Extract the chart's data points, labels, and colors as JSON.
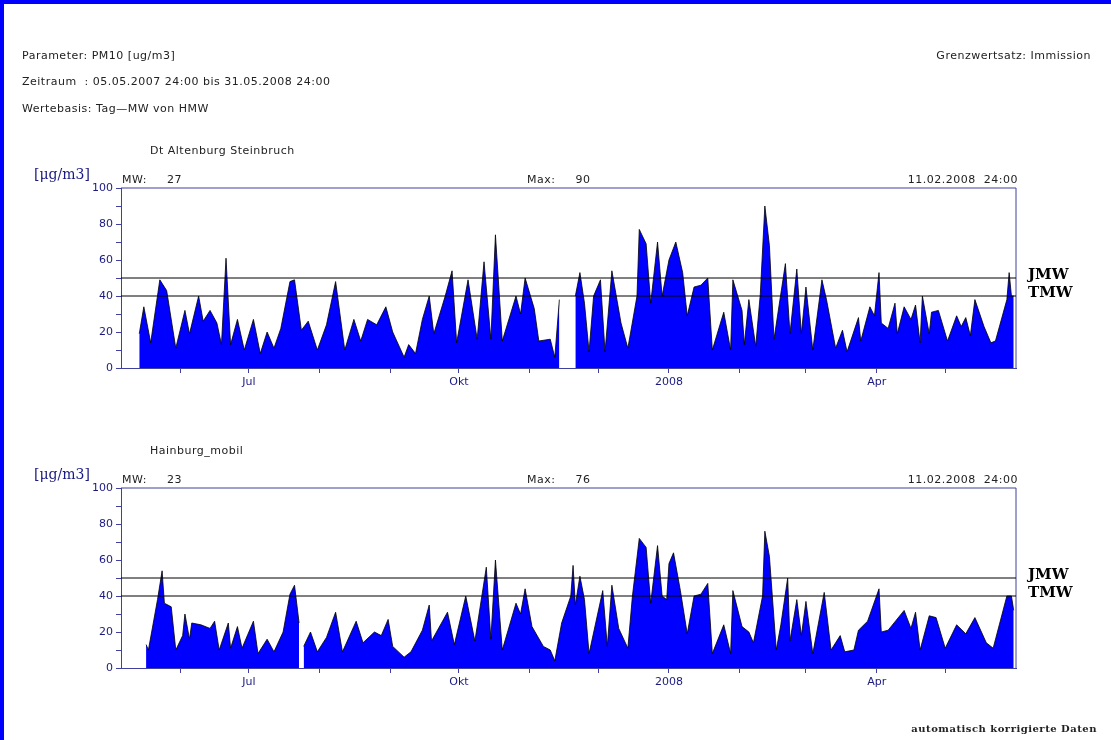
{
  "chart_data": [
    {
      "type": "area",
      "title": "Dt Altenburg Steinbruch",
      "ylabel": "[μg/m3]",
      "annotations": [
        "Parameter: PM10 [ug/m3]",
        "Grenzwertsatz: Immission",
        "Zeitraum  : 05.05.2007 24:00 bis 31.05.2008 24:00",
        "Wertebasis: Tag—MW von HMW",
        "MW:     27",
        "Max:     90",
        "11.02.2008  24:00"
      ],
      "x": [
        "2007-05-14",
        "2007-05-16",
        "2007-05-19",
        "2007-05-23",
        "2007-05-26",
        "2007-05-30",
        "2007-06-03",
        "2007-06-05",
        "2007-06-09",
        "2007-06-11",
        "2007-06-14",
        "2007-06-17",
        "2007-06-19",
        "2007-06-21",
        "2007-06-23",
        "2007-06-26",
        "2007-06-29",
        "2007-07-03",
        "2007-07-06",
        "2007-07-09",
        "2007-07-12",
        "2007-07-15",
        "2007-07-19",
        "2007-07-21",
        "2007-07-24",
        "2007-07-27",
        "2007-07-31",
        "2007-08-04",
        "2007-08-08",
        "2007-08-12",
        "2007-08-16",
        "2007-08-19",
        "2007-08-22",
        "2007-08-26",
        "2007-08-30",
        "2007-09-02",
        "2007-09-07",
        "2007-09-09",
        "2007-09-12",
        "2007-09-15",
        "2007-09-18",
        "2007-09-20",
        "2007-09-25",
        "2007-09-28",
        "2007-09-30",
        "2007-10-05",
        "2007-10-09",
        "2007-10-12",
        "2007-10-15",
        "2007-10-17",
        "2007-10-20",
        "2007-10-26",
        "2007-10-28",
        "2007-10-30",
        "2007-11-03",
        "2007-11-05",
        "2007-11-10",
        "2007-11-12",
        "2007-11-14",
        "2007-11-17",
        "2007-11-21",
        "2007-11-23",
        "2007-11-25",
        "2007-11-27",
        "2007-11-29",
        "2007-12-02",
        "2007-12-04",
        "2007-12-07",
        "2007-12-11",
        "2007-12-14",
        "2007-12-18",
        "2007-12-19",
        "2007-12-22",
        "2007-12-24",
        "2007-12-27",
        "2007-12-29",
        "2008-01-01",
        "2008-01-04",
        "2008-01-07",
        "2008-01-09",
        "2008-01-12",
        "2008-01-15",
        "2008-01-18",
        "2008-01-20",
        "2008-01-25",
        "2008-01-28",
        "2008-01-29",
        "2008-02-02",
        "2008-02-03",
        "2008-02-05",
        "2008-02-08",
        "2008-02-10",
        "2008-02-12",
        "2008-02-14",
        "2008-02-16",
        "2008-02-21",
        "2008-02-23",
        "2008-02-26",
        "2008-02-28",
        "2008-03-01",
        "2008-03-04",
        "2008-03-08",
        "2008-03-10",
        "2008-03-14",
        "2008-03-17",
        "2008-03-19",
        "2008-03-24",
        "2008-03-25",
        "2008-03-29",
        "2008-03-31",
        "2008-04-02",
        "2008-04-03",
        "2008-04-06",
        "2008-04-09",
        "2008-04-10",
        "2008-04-13",
        "2008-04-16",
        "2008-04-18",
        "2008-04-20",
        "2008-04-21",
        "2008-04-24",
        "2008-04-25",
        "2008-04-28",
        "2008-05-02",
        "2008-05-06",
        "2008-05-08",
        "2008-05-10",
        "2008-05-12",
        "2008-05-14",
        "2008-05-18",
        "2008-05-21",
        "2008-05-23",
        "2008-05-28",
        "2008-05-29",
        "2008-05-30",
        "2008-05-31"
      ],
      "values": [
        19,
        34,
        14,
        49,
        43,
        11,
        32,
        19,
        40,
        26,
        32,
        25,
        13,
        61,
        13,
        27,
        10,
        27,
        8,
        20,
        11,
        22,
        48,
        49,
        21,
        26,
        10,
        24,
        48,
        10,
        27,
        15,
        27,
        24,
        34,
        20,
        6,
        13,
        8,
        27,
        40,
        19,
        40,
        54,
        14,
        49,
        16,
        59,
        16,
        74,
        15,
        40,
        30,
        50,
        33,
        15,
        16,
        6,
        38,
        null,
        40,
        53,
        36,
        9,
        40,
        49,
        9,
        54,
        25,
        11,
        40,
        77,
        69,
        36,
        70,
        40,
        60,
        70,
        53,
        29,
        45,
        46,
        50,
        10,
        31,
        10,
        49,
        32,
        13,
        38,
        12,
        41,
        90,
        68,
        16,
        58,
        19,
        55,
        19,
        45,
        10,
        49,
        38,
        11,
        21,
        9,
        28,
        15,
        34,
        29,
        53,
        25,
        22,
        36,
        19,
        34,
        27,
        35,
        14,
        40,
        19,
        31,
        32,
        15,
        29,
        23,
        28,
        18,
        38,
        23,
        14,
        15,
        38,
        53,
        40,
        40
      ],
      "color": "#0000ff",
      "xlim": [
        "2007-05-06",
        "2008-06-01"
      ],
      "xticks": [
        {
          "value": "2007-06-01",
          "label": null
        },
        {
          "value": "2007-07-01",
          "label": "Jul"
        },
        {
          "value": "2007-08-01",
          "label": null
        },
        {
          "value": "2007-09-01",
          "label": null
        },
        {
          "value": "2007-10-01",
          "label": "Okt"
        },
        {
          "value": "2007-11-01",
          "label": null
        },
        {
          "value": "2007-12-01",
          "label": null
        },
        {
          "value": "2008-01-01",
          "label": "2008"
        },
        {
          "value": "2008-02-01",
          "label": null
        },
        {
          "value": "2008-03-01",
          "label": null
        },
        {
          "value": "2008-04-01",
          "label": "Apr"
        },
        {
          "value": "2008-05-01",
          "label": null
        }
      ],
      "ylim": [
        0,
        100
      ],
      "yticks": [
        0,
        {
          "value": 10,
          "label": null
        },
        20,
        {
          "value": 30,
          "label": null
        },
        40,
        {
          "value": 50,
          "label": null
        },
        60,
        {
          "value": 70,
          "label": null
        },
        80,
        {
          "value": 90,
          "label": null
        },
        100
      ],
      "ref_lines": [
        {
          "axis": "y",
          "value": 50,
          "label": "JMW",
          "color": "#000000"
        },
        {
          "axis": "y",
          "value": 40,
          "label": "TMW",
          "color": "#000000"
        }
      ]
    },
    {
      "type": "area",
      "title": "Hainburg_mobil",
      "ylabel": "[μg/m3]",
      "annotations": [
        "MW:     23",
        "Max:     76",
        "11.02.2008  24:00",
        "automatisch korrigierte Daten"
      ],
      "x": [
        "2007-05-17",
        "2007-05-18",
        "2007-05-22",
        "2007-05-24",
        "2007-05-25",
        "2007-05-28",
        "2007-05-30",
        "2007-06-02",
        "2007-06-03",
        "2007-06-05",
        "2007-06-06",
        "2007-06-10",
        "2007-06-14",
        "2007-06-16",
        "2007-06-18",
        "2007-06-22",
        "2007-06-23",
        "2007-06-26",
        "2007-06-28",
        "2007-07-03",
        "2007-07-05",
        "2007-07-09",
        "2007-07-12",
        "2007-07-16",
        "2007-07-19",
        "2007-07-21",
        "2007-07-23",
        "2007-07-24",
        "2007-07-25",
        "2007-07-28",
        "2007-07-31",
        "2007-08-04",
        "2007-08-08",
        "2007-08-11",
        "2007-08-17",
        "2007-08-20",
        "2007-08-25",
        "2007-08-28",
        "2007-08-31",
        "2007-09-02",
        "2007-09-07",
        "2007-09-10",
        "2007-09-15",
        "2007-09-18",
        "2007-09-19",
        "2007-09-26",
        "2007-09-29",
        "2007-10-04",
        "2007-10-08",
        "2007-10-13",
        "2007-10-15",
        "2007-10-17",
        "2007-10-20",
        "2007-10-26",
        "2007-10-28",
        "2007-10-30",
        "2007-11-02",
        "2007-11-07",
        "2007-11-10",
        "2007-11-12",
        "2007-11-15",
        "2007-11-19",
        "2007-11-20",
        "2007-11-21",
        "2007-11-23",
        "2007-11-25",
        "2007-11-27",
        "2007-12-03",
        "2007-12-05",
        "2007-12-07",
        "2007-12-10",
        "2007-12-14",
        "2007-12-16",
        "2007-12-19",
        "2007-12-22",
        "2007-12-24",
        "2007-12-27",
        "2007-12-29",
        "2007-12-31",
        "2008-01-01",
        "2008-01-03",
        "2008-01-06",
        "2008-01-09",
        "2008-01-12",
        "2008-01-15",
        "2008-01-18",
        "2008-01-20",
        "2008-01-25",
        "2008-01-28",
        "2008-01-29",
        "2008-02-02",
        "2008-02-05",
        "2008-02-07",
        "2008-02-11",
        "2008-02-12",
        "2008-02-14",
        "2008-02-17",
        "2008-02-19",
        "2008-02-22",
        "2008-02-23",
        "2008-02-26",
        "2008-02-28",
        "2008-03-01",
        "2008-03-04",
        "2008-03-09",
        "2008-03-12",
        "2008-03-16",
        "2008-03-18",
        "2008-03-22",
        "2008-03-24",
        "2008-03-28",
        "2008-04-02",
        "2008-04-03",
        "2008-04-06",
        "2008-04-13",
        "2008-04-16",
        "2008-04-18",
        "2008-04-20",
        "2008-04-24",
        "2008-04-27",
        "2008-05-01",
        "2008-05-06",
        "2008-05-10",
        "2008-05-14",
        "2008-05-19",
        "2008-05-22",
        "2008-05-28",
        "2008-05-30",
        "2008-05-31"
      ],
      "values": [
        13,
        10,
        38,
        54,
        36,
        34,
        10,
        18,
        30,
        16,
        25,
        24,
        22,
        26,
        10,
        25,
        11,
        23,
        11,
        26,
        8,
        16,
        9,
        20,
        41,
        46,
        25,
        null,
        12,
        20,
        9,
        17,
        31,
        9,
        26,
        14,
        20,
        18,
        27,
        12,
        6,
        9,
        21,
        35,
        15,
        31,
        13,
        40,
        15,
        56,
        16,
        60,
        10,
        36,
        30,
        44,
        23,
        12,
        10,
        4,
        25,
        40,
        57,
        35,
        51,
        38,
        8,
        43,
        12,
        46,
        22,
        11,
        40,
        72,
        67,
        36,
        68,
        40,
        38,
        58,
        64,
        43,
        19,
        40,
        41,
        47,
        8,
        24,
        8,
        43,
        23,
        20,
        14,
        40,
        76,
        62,
        10,
        24,
        50,
        15,
        38,
        18,
        37,
        8,
        42,
        10,
        18,
        9,
        10,
        21,
        26,
        44,
        20,
        21,
        32,
        22,
        31,
        10,
        29,
        28,
        11,
        24,
        19,
        28,
        14,
        11,
        40,
        40,
        32
      ],
      "color": "#0000ff",
      "xlim": [
        "2007-05-06",
        "2008-06-01"
      ],
      "xticks": [
        {
          "value": "2007-06-01",
          "label": null
        },
        {
          "value": "2007-07-01",
          "label": "Jul"
        },
        {
          "value": "2007-08-01",
          "label": null
        },
        {
          "value": "2007-09-01",
          "label": null
        },
        {
          "value": "2007-10-01",
          "label": "Okt"
        },
        {
          "value": "2007-11-01",
          "label": null
        },
        {
          "value": "2007-12-01",
          "label": null
        },
        {
          "value": "2008-01-01",
          "label": "2008"
        },
        {
          "value": "2008-02-01",
          "label": null
        },
        {
          "value": "2008-03-01",
          "label": null
        },
        {
          "value": "2008-04-01",
          "label": "Apr"
        },
        {
          "value": "2008-05-01",
          "label": null
        }
      ],
      "ylim": [
        0,
        100
      ],
      "yticks": [
        0,
        {
          "value": 10,
          "label": null
        },
        20,
        {
          "value": 30,
          "label": null
        },
        40,
        {
          "value": 50,
          "label": null
        },
        60,
        {
          "value": 70,
          "label": null
        },
        80,
        {
          "value": 90,
          "label": null
        },
        100
      ],
      "ref_lines": [
        {
          "axis": "y",
          "value": 50,
          "label": "JMW",
          "color": "#000000"
        },
        {
          "axis": "y",
          "value": 40,
          "label": "TMW",
          "color": "#000000"
        }
      ]
    }
  ]
}
